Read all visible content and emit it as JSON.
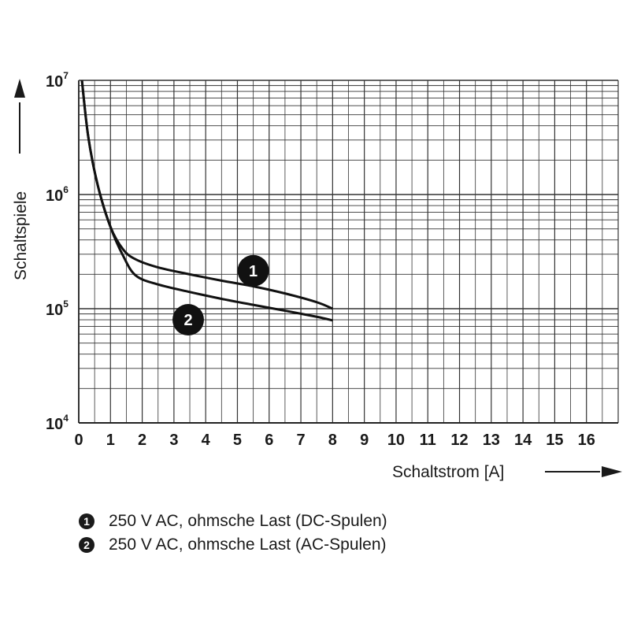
{
  "chart_data": {
    "type": "line",
    "ylabel": "Schaltspiele",
    "xlabel": "Schaltstrom [A]",
    "x_ticks": [
      "0",
      "1",
      "2",
      "3",
      "4",
      "5",
      "6",
      "7",
      "8",
      "9",
      "10",
      "11",
      "12",
      "13",
      "14",
      "15",
      "16"
    ],
    "y_ticks": [
      {
        "base": "10",
        "exp": "4",
        "value": 10000
      },
      {
        "base": "10",
        "exp": "5",
        "value": 100000
      },
      {
        "base": "10",
        "exp": "6",
        "value": 1000000
      },
      {
        "base": "10",
        "exp": "7",
        "value": 10000000
      }
    ],
    "xlim": [
      0,
      17
    ],
    "ylim": [
      10000,
      10000000
    ],
    "y_scale": "log",
    "grid": true,
    "series": [
      {
        "marker": "1",
        "x": [
          0.1,
          0.3,
          0.6,
          1.0,
          1.4,
          1.8,
          2.5,
          3.5,
          4.5,
          5.5,
          6.5,
          7.5,
          8.0
        ],
        "y": [
          10000000,
          3200000,
          1200000,
          520000,
          330000,
          270000,
          230000,
          200000,
          176000,
          157000,
          136000,
          114000,
          100000
        ]
      },
      {
        "marker": "2",
        "x": [
          0.1,
          0.3,
          0.6,
          1.0,
          1.4,
          1.8,
          2.5,
          3.5,
          4.5,
          5.5,
          6.5,
          7.5,
          8.0
        ],
        "y": [
          10000000,
          3200000,
          1200000,
          520000,
          290000,
          195000,
          163000,
          140000,
          122000,
          108000,
          96000,
          85000,
          79000
        ]
      }
    ],
    "legend": [
      {
        "marker": "1",
        "text": "250 V AC, ohmsche Last (DC-Spulen)"
      },
      {
        "marker": "2",
        "text": "250 V AC, ohmsche Last (AC-Spulen)"
      }
    ]
  }
}
